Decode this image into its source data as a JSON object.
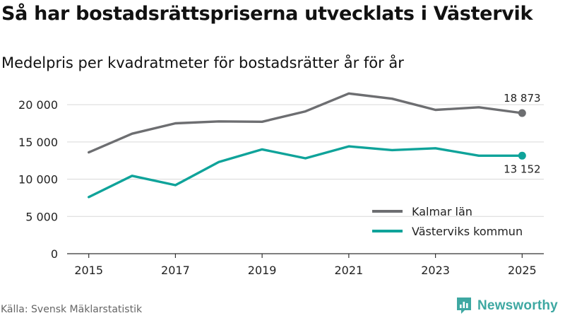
{
  "title": "Så har bostadsrättspriserna utvecklats i Västervik",
  "subtitle": "Medelpris per kvadratmeter för bostadsrätter år för år",
  "source": "Källa: Svensk Mäklarstatistik",
  "brand": "Newsworthy",
  "chart_data": {
    "type": "line",
    "title": "Så har bostadsrättspriserna utvecklats i Västervik",
    "subtitle": "Medelpris per kvadratmeter för bostadsrätter år för år",
    "xlabel": "",
    "ylabel": "",
    "x": [
      2015,
      2016,
      2017,
      2018,
      2019,
      2020,
      2021,
      2022,
      2023,
      2024,
      2025
    ],
    "xticks": [
      "2015",
      "2017",
      "2019",
      "2021",
      "2023",
      "2025"
    ],
    "yticks": [
      0,
      5000,
      10000,
      15000,
      20000
    ],
    "ytick_labels": [
      "0",
      "5 000",
      "10 000",
      "15 000",
      "20 000"
    ],
    "xlim": [
      2014.5,
      2025.5
    ],
    "ylim": [
      0,
      22000
    ],
    "grid": "horizontal",
    "legend_position": "bottom-right",
    "series": [
      {
        "name": "Kalmar län",
        "color": "#6d6e71",
        "values": [
          13600,
          16100,
          17500,
          17750,
          17700,
          19100,
          21500,
          20800,
          19300,
          19650,
          18873
        ],
        "end_label": "18 873"
      },
      {
        "name": "Västerviks kommun",
        "color": "#0fa39a",
        "values": [
          7600,
          10450,
          9200,
          12300,
          14000,
          12800,
          14400,
          13900,
          14150,
          13150,
          13152
        ],
        "end_label": "13 152"
      }
    ]
  }
}
